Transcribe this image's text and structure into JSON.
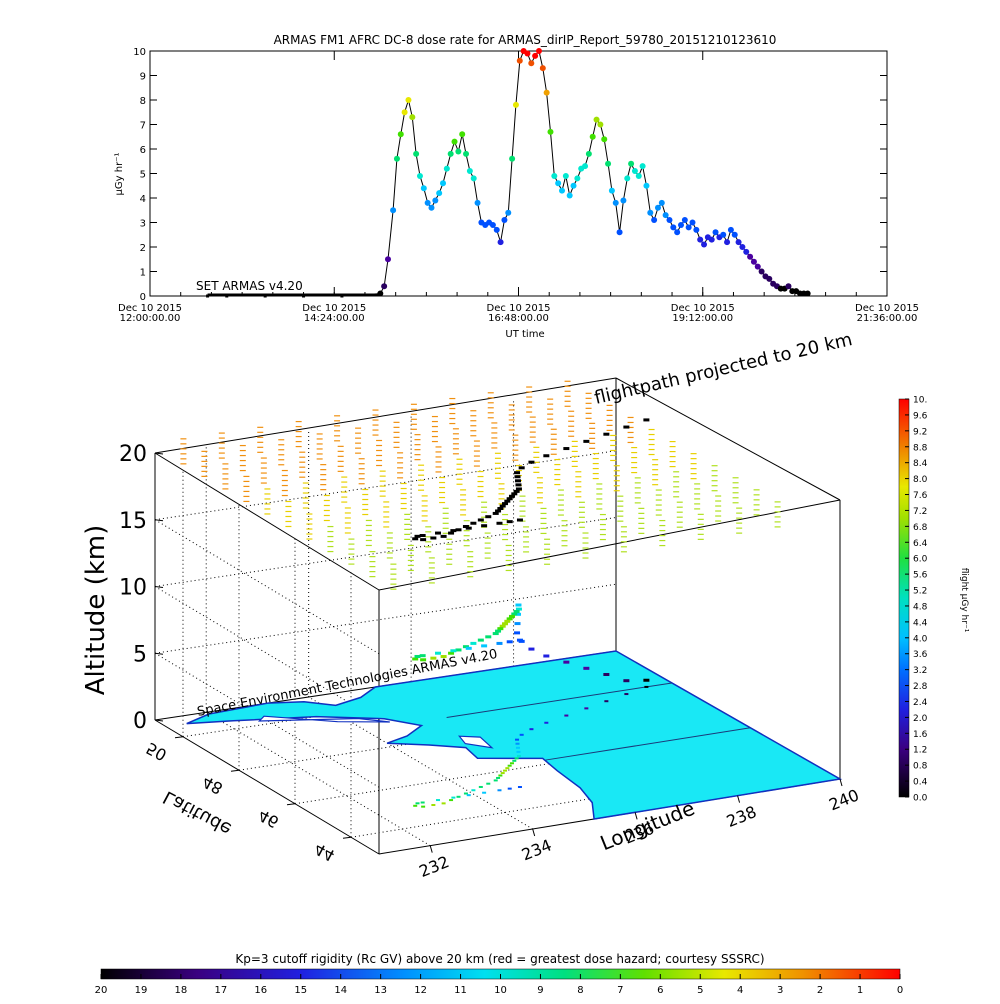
{
  "chart_data": [
    {
      "type": "line",
      "title": "ARMAS FM1 AFRC DC-8  dose rate for ARMAS_dirIP_Report_59780_20151210123610",
      "xlabel": "UT time",
      "ylabel": "µGy hr⁻¹",
      "ylim": [
        0,
        10
      ],
      "x_ticks": [
        {
          "date": "Dec 10 2015",
          "time": "12:00:00.00"
        },
        {
          "date": "Dec 10 2015",
          "time": "14:24:00.00"
        },
        {
          "date": "Dec 10 2015",
          "time": "16:48:00.00"
        },
        {
          "date": "Dec 10 2015",
          "time": "19:12:00.00"
        },
        {
          "date": "Dec 10 2015",
          "time": "21:36:00.00"
        }
      ],
      "y_ticks": [
        "0",
        "1",
        "2",
        "3",
        "4",
        "5",
        "6",
        "7",
        "8",
        "9",
        "10"
      ],
      "annotation": "SET ARMAS v4.20",
      "grid": false,
      "series": [
        {
          "x": [
            "12:45",
            "13:00",
            "13:30",
            "14:00",
            "14:30",
            "15:00",
            "15:03",
            "15:06",
            "15:10",
            "15:13",
            "15:16",
            "15:19",
            "15:22",
            "15:25",
            "15:28",
            "15:31",
            "15:34",
            "15:37",
            "15:40",
            "15:43",
            "15:46",
            "15:49",
            "15:52",
            "15:55",
            "15:58",
            "16:01",
            "16:04",
            "16:07",
            "16:10",
            "16:13",
            "16:16",
            "16:19",
            "16:22",
            "16:25",
            "16:28",
            "16:31",
            "16:34",
            "16:37",
            "16:40",
            "16:43",
            "16:46",
            "16:49",
            "16:52",
            "16:55",
            "16:58",
            "17:01",
            "17:04",
            "17:07",
            "17:10",
            "17:13",
            "17:16",
            "17:19",
            "17:22",
            "17:25",
            "17:28",
            "17:31",
            "17:34",
            "17:37",
            "17:40",
            "17:43",
            "17:46",
            "17:49",
            "17:52",
            "17:55",
            "17:58",
            "18:01",
            "18:04",
            "18:07",
            "18:10",
            "18:13",
            "18:16",
            "18:19",
            "18:22",
            "18:25",
            "18:28",
            "18:31",
            "18:34",
            "18:37",
            "18:40",
            "18:43",
            "18:46",
            "18:49",
            "18:52",
            "18:55",
            "18:58",
            "19:01",
            "19:04",
            "19:07",
            "19:10",
            "19:13",
            "19:16",
            "19:19",
            "19:22",
            "19:25",
            "19:28",
            "19:31",
            "19:34",
            "19:37",
            "19:40",
            "19:43",
            "19:46",
            "19:49",
            "19:52",
            "19:55",
            "19:58",
            "20:01",
            "20:04",
            "20:07",
            "20:10",
            "20:13",
            "20:16",
            "20:19",
            "20:22",
            "20:25",
            "20:28",
            "20:31",
            "20:34"
          ],
          "y": [
            0,
            0,
            0,
            0,
            0,
            0.1,
            0.4,
            1.5,
            3.5,
            5.6,
            6.6,
            7.5,
            8.0,
            7.3,
            5.8,
            4.9,
            4.4,
            3.8,
            3.6,
            3.9,
            4.2,
            4.6,
            5.2,
            5.8,
            6.3,
            5.9,
            6.6,
            5.8,
            5.1,
            4.8,
            3.8,
            3.0,
            2.9,
            3.0,
            2.9,
            2.7,
            2.2,
            3.1,
            3.4,
            5.6,
            7.8,
            9.6,
            10.0,
            9.9,
            9.5,
            9.8,
            10.0,
            9.3,
            8.3,
            6.7,
            4.9,
            4.6,
            4.3,
            4.9,
            4.1,
            4.5,
            4.8,
            5.2,
            5.3,
            5.8,
            6.5,
            7.2,
            7.0,
            6.4,
            5.4,
            4.3,
            3.8,
            2.6,
            3.9,
            4.8,
            5.4,
            5.1,
            4.9,
            5.3,
            4.5,
            3.4,
            3.1,
            3.6,
            3.8,
            3.3,
            3.1,
            2.8,
            2.6,
            2.9,
            3.1,
            2.8,
            3.0,
            2.7,
            2.3,
            2.1,
            2.4,
            2.3,
            2.6,
            2.4,
            2.5,
            2.2,
            2.7,
            2.5,
            2.2,
            2.0,
            1.8,
            1.6,
            1.4,
            1.2,
            1.0,
            0.8,
            0.7,
            0.5,
            0.4,
            0.3,
            0.3,
            0.4,
            0.2,
            0.2,
            0.1,
            0.1,
            0.1
          ]
        }
      ]
    },
    {
      "type": "scatter",
      "title": "",
      "annotation_top": "flightpath projected to 20 km",
      "annotation_base": "Space Environment Technologies ARMAS v4.20",
      "zlabel": "Altitude (km)",
      "xlabel": "Longitude",
      "ylabel": "Latitude",
      "z_ticks": [
        "0",
        "5",
        "10",
        "15",
        "20"
      ],
      "x_ticks": [
        "232",
        "234",
        "236",
        "238",
        "240"
      ],
      "y_ticks": [
        "44",
        "46",
        "48",
        "50"
      ],
      "xlim": [
        231,
        240
      ],
      "ylim": [
        43,
        51
      ],
      "zlim": [
        0,
        20
      ],
      "grid": true,
      "series": [
        {
          "lon": [
            239.5,
            239.0,
            238.5,
            238.0,
            237.5,
            237.0,
            236.6,
            236.3,
            236.1,
            236.0,
            235.9,
            235.8,
            235.7,
            235.6,
            235.5,
            235.4,
            235.3,
            235.2,
            235.1,
            235.0,
            234.9,
            234.8,
            234.7,
            234.5,
            234.3,
            234.1,
            233.9,
            233.7,
            233.5,
            233.3,
            233.1,
            232.9,
            232.8,
            232.9,
            233.0,
            233.3,
            233.6,
            233.9,
            234.2,
            234.5,
            234.7,
            234.9
          ],
          "lat": [
            49.0,
            48.8,
            48.6,
            48.4,
            48.2,
            48.0,
            47.8,
            47.6,
            47.4,
            47.2,
            47.0,
            46.8,
            46.6,
            46.5,
            46.4,
            46.3,
            46.2,
            46.1,
            46.0,
            45.9,
            45.8,
            45.7,
            45.6,
            45.5,
            45.4,
            45.3,
            45.2,
            45.1,
            45.0,
            44.9,
            44.9,
            44.9,
            45.0,
            45.1,
            45.1,
            45.1,
            45.1,
            45.1,
            45.1,
            45.1,
            45.1,
            45.1
          ],
          "alt": [
            0.5,
            1,
            2,
            3,
            4,
            5,
            6,
            7,
            8,
            9,
            10,
            11,
            11,
            11,
            11,
            11,
            11,
            11,
            11,
            11,
            11,
            11,
            11,
            11,
            11,
            11,
            11,
            11,
            11,
            11,
            11,
            11,
            11,
            11,
            11,
            11,
            11,
            11,
            11,
            11,
            11,
            11
          ],
          "dose": [
            0.3,
            0.5,
            0.8,
            1.2,
            1.6,
            2.0,
            2.4,
            2.8,
            3.2,
            3.6,
            4.0,
            4.4,
            5.0,
            5.6,
            6.0,
            6.4,
            6.6,
            6.8,
            7.0,
            6.8,
            6.4,
            6.0,
            5.8,
            5.6,
            5.4,
            5.2,
            5.6,
            6.0,
            6.4,
            6.8,
            7.0,
            6.6,
            6.2,
            6.0,
            5.6,
            5.2,
            4.8,
            4.4,
            4.0,
            3.6,
            3.2,
            3.0
          ]
        }
      ]
    },
    {
      "type": "heatmap",
      "title": "Kp=3 cutoff rigidity (Rc GV) above 20 km (red = greatest dose hazard; courtesy SSSRC)",
      "colorbar_ticks": [
        "20",
        "19",
        "18",
        "17",
        "16",
        "15",
        "14",
        "13",
        "12",
        "11",
        "10",
        "9",
        "8",
        "7",
        "6",
        "5",
        "4",
        "3",
        "2",
        "1",
        "0"
      ],
      "colorbar_range": [
        20,
        0
      ]
    }
  ],
  "colorbar_right": {
    "label": "flight µGy hr⁻¹",
    "ticks": [
      "0.0",
      "0.4",
      "0.8",
      "1.2",
      "1.6",
      "2.0",
      "2.4",
      "2.8",
      "3.2",
      "3.6",
      "4.0",
      "4.4",
      "4.8",
      "5.2",
      "5.6",
      "6.0",
      "6.4",
      "6.8",
      "7.2",
      "7.6",
      "8.0",
      "8.4",
      "8.8",
      "9.2",
      "9.6",
      "10."
    ],
    "range": [
      0,
      10
    ]
  },
  "colors": {
    "land": "#19e8f5",
    "coast": "#1030c0",
    "colormap": [
      "#000000",
      "#2a0060",
      "#4a00a0",
      "#2a10c8",
      "#0040ff",
      "#0090ff",
      "#00d8f0",
      "#00f0b0",
      "#30e040",
      "#90e000",
      "#e0e000",
      "#f0a000",
      "#f05000",
      "#ff0000"
    ]
  }
}
